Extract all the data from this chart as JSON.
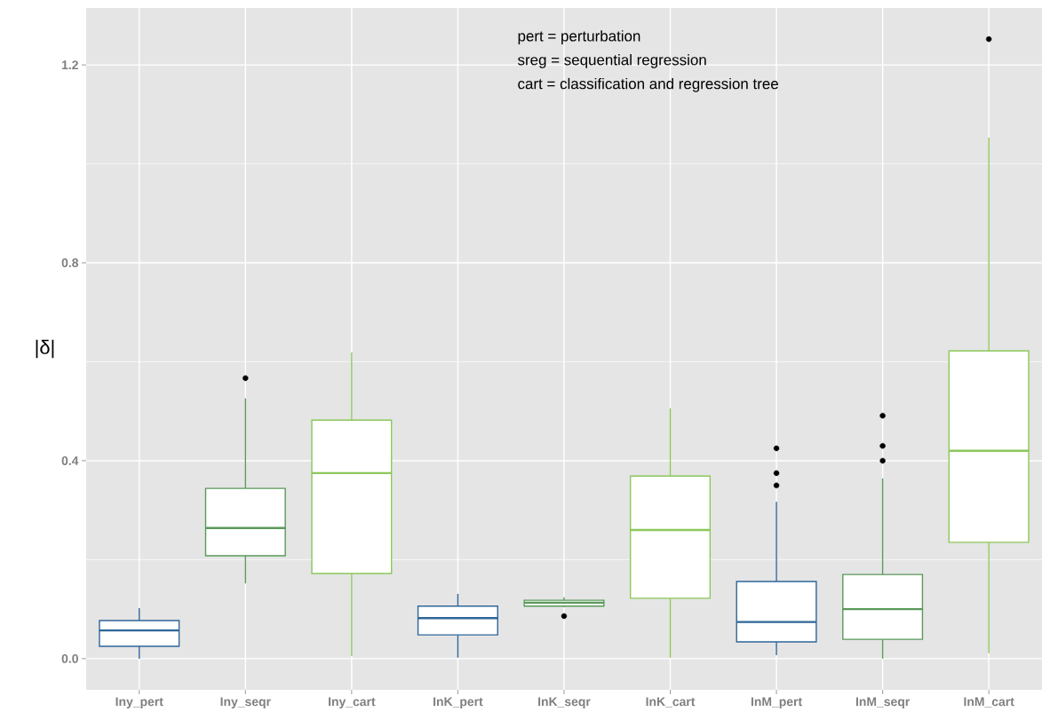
{
  "chart_data": {
    "type": "box",
    "ylabel": "|δ|",
    "categories": [
      "Iny_pert",
      "Iny_seqr",
      "Iny_cart",
      "InK_pert",
      "InK_seqr",
      "InK_cart",
      "InM_pert",
      "InM_seqr",
      "InM_cart"
    ],
    "colors": [
      "#2f6699",
      "#5a9a5a",
      "#8cc85a",
      "#2f6699",
      "#5a9a5a",
      "#8cc85a",
      "#2f6699",
      "#5a9a5a",
      "#8cc85a"
    ],
    "boxes": [
      {
        "low": 0.0,
        "q1": 0.025,
        "median": 0.057,
        "q3": 0.077,
        "high": 0.102
      },
      {
        "low": 0.152,
        "q1": 0.208,
        "median": 0.264,
        "q3": 0.344,
        "high": 0.526,
        "outliers": [
          0.567
        ]
      },
      {
        "low": 0.005,
        "q1": 0.172,
        "median": 0.375,
        "q3": 0.482,
        "high": 0.619
      },
      {
        "low": 0.002,
        "q1": 0.048,
        "median": 0.082,
        "q3": 0.106,
        "high": 0.131
      },
      {
        "low": 0.104,
        "q1": 0.106,
        "median": 0.113,
        "q3": 0.118,
        "high": 0.124,
        "outliers": [
          0.086
        ]
      },
      {
        "low": 0.002,
        "q1": 0.122,
        "median": 0.26,
        "q3": 0.369,
        "high": 0.506
      },
      {
        "low": 0.007,
        "q1": 0.034,
        "median": 0.074,
        "q3": 0.156,
        "high": 0.317,
        "outliers": [
          0.35,
          0.375,
          0.425
        ]
      },
      {
        "low": 0.0,
        "q1": 0.039,
        "median": 0.1,
        "q3": 0.17,
        "high": 0.364,
        "outliers": [
          0.4,
          0.43,
          0.491
        ]
      },
      {
        "low": 0.011,
        "q1": 0.235,
        "median": 0.42,
        "q3": 0.622,
        "high": 1.053,
        "outliers": [
          1.252
        ]
      }
    ],
    "ylim": [
      -0.063,
      1.315
    ],
    "yticks": [
      {
        "value": 0.0,
        "label": "0.0"
      },
      {
        "value": 0.4,
        "label": "0.4"
      },
      {
        "value": 0.8,
        "label": "0.8"
      },
      {
        "value": 1.2,
        "label": "1.2"
      }
    ],
    "grid": true,
    "annotations": [
      "pert = perturbation",
      "sreg = sequential regression",
      "cart = classification and regression tree"
    ]
  }
}
